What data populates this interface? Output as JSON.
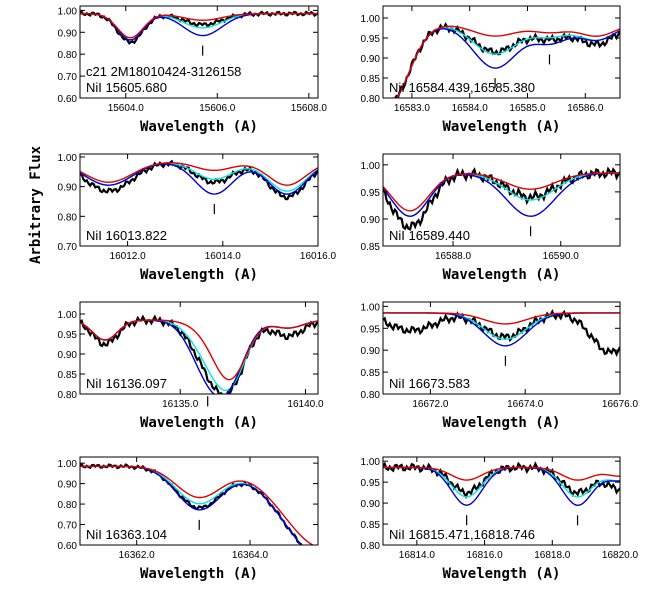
{
  "figure": {
    "ylabel": "Arbitrary Flux",
    "xlabel": "Wavelength (A)",
    "colors": {
      "black": "#000000",
      "cyan": "#00e5e5",
      "blue": "#0000cc",
      "red": "#e00000"
    }
  },
  "chart_data": [
    {
      "type": "line",
      "label_lines": [
        "c21 2M18010424-3126158",
        "NiI 15605.680"
      ],
      "xlim": [
        15603.0,
        15608.2
      ],
      "ylim": [
        0.6,
        1.02
      ],
      "xticks": [
        "15604.0",
        "15606.0",
        "15608.0"
      ],
      "xtick_values": [
        15604,
        15606,
        15608
      ],
      "yticks": [
        "0.60",
        "0.70",
        "0.80",
        "0.90",
        "1.00"
      ],
      "ytick_values": [
        0.6,
        0.7,
        0.8,
        0.9,
        1.0
      ],
      "markers": [
        15605.68
      ],
      "dips": [
        {
          "c": 15604.1,
          "w": 0.28,
          "d": [
            0.13,
            0.12,
            0.12,
            0.11
          ]
        },
        {
          "c": 15605.68,
          "w": 0.42,
          "d": [
            0.05,
            0.065,
            0.1,
            0.03
          ]
        }
      ],
      "bump": 0.0
    },
    {
      "type": "line",
      "label_lines": [
        "NiI 16584.439,16585.380"
      ],
      "xlim": [
        16582.5,
        16586.6
      ],
      "ylim": [
        0.8,
        1.03
      ],
      "xticks": [
        "16583.0",
        "16584.0",
        "16585.0",
        "16586.0"
      ],
      "xtick_values": [
        16583,
        16584,
        16585,
        16586
      ],
      "yticks": [
        "0.80",
        "0.85",
        "0.90",
        "0.95",
        "1.00"
      ],
      "ytick_values": [
        0.8,
        0.85,
        0.9,
        0.95,
        1.0
      ],
      "markers": [
        16584.439,
        16585.38
      ],
      "dips": [
        {
          "c": 16582.6,
          "w": 0.35,
          "d": [
            0.2,
            0.2,
            0.2,
            0.2
          ]
        },
        {
          "c": 16584.44,
          "w": 0.38,
          "d": [
            0.07,
            0.075,
            0.11,
            0.03
          ]
        },
        {
          "c": 16585.4,
          "w": 0.3,
          "d": [
            0.035,
            0.03,
            0.045,
            0.02
          ]
        },
        {
          "c": 16586.2,
          "w": 0.3,
          "d": [
            0.05,
            0.04,
            0.04,
            0.03
          ]
        }
      ],
      "bump": 0.0
    },
    {
      "type": "line",
      "label_lines": [
        "NiI 16013.822"
      ],
      "xlim": [
        16011.0,
        16016.0
      ],
      "ylim": [
        0.7,
        1.01
      ],
      "xticks": [
        "16012.0",
        "16014.0",
        "16016.0"
      ],
      "xtick_values": [
        16012,
        16014,
        16016
      ],
      "yticks": [
        "0.70",
        "0.80",
        "0.90",
        "1.00"
      ],
      "ytick_values": [
        0.7,
        0.8,
        0.9,
        1.0
      ],
      "markers": [
        16013.822
      ],
      "dips": [
        {
          "c": 16011.6,
          "w": 0.5,
          "d": [
            0.1,
            0.08,
            0.08,
            0.07
          ]
        },
        {
          "c": 16013.82,
          "w": 0.4,
          "d": [
            0.07,
            0.06,
            0.11,
            0.03
          ]
        },
        {
          "c": 16015.35,
          "w": 0.4,
          "d": [
            0.12,
            0.1,
            0.11,
            0.08
          ]
        }
      ],
      "bump": 0.0
    },
    {
      "type": "line",
      "label_lines": [
        "NiI 16589.440"
      ],
      "xlim": [
        16586.7,
        16591.1
      ],
      "ylim": [
        0.85,
        1.02
      ],
      "xticks": [
        "16588.0",
        "16590.0"
      ],
      "xtick_values": [
        16588,
        16590
      ],
      "yticks": [
        "0.85",
        "0.90",
        "0.95",
        "1.00"
      ],
      "ytick_values": [
        0.85,
        0.9,
        0.95,
        1.0
      ],
      "markers": [
        16589.44
      ],
      "dips": [
        {
          "c": 16587.2,
          "w": 0.35,
          "d": [
            0.1,
            0.08,
            0.08,
            0.07
          ]
        },
        {
          "c": 16589.44,
          "w": 0.45,
          "d": [
            0.045,
            0.05,
            0.08,
            0.03
          ]
        }
      ],
      "bump": 0.0
    },
    {
      "type": "line",
      "label_lines": [
        "NiI 16136.097"
      ],
      "xlim": [
        16131.0,
        16140.5
      ],
      "ylim": [
        0.8,
        1.03
      ],
      "xticks": [
        "16135.0",
        "16140.0"
      ],
      "xtick_values": [
        16135,
        16140
      ],
      "yticks": [
        "0.80",
        "0.85",
        "0.90",
        "0.95",
        "1.00"
      ],
      "ytick_values": [
        0.8,
        0.85,
        0.9,
        0.95,
        1.0
      ],
      "markers": [
        16136.097
      ],
      "dips": [
        {
          "c": 16132.0,
          "w": 0.5,
          "d": [
            0.06,
            0.05,
            0.05,
            0.05
          ]
        },
        {
          "c": 16136.1,
          "w": 0.7,
          "d": [
            0.09,
            0.07,
            0.12,
            0.02
          ]
        },
        {
          "c": 16137.0,
          "w": 0.65,
          "d": [
            0.14,
            0.14,
            0.12,
            0.14
          ]
        },
        {
          "c": 16139.3,
          "w": 0.6,
          "d": [
            0.04,
            0.02,
            0.02,
            0.02
          ]
        }
      ],
      "bump": 0.0
    },
    {
      "type": "line",
      "label_lines": [
        "NiI 16673.583"
      ],
      "xlim": [
        16671.0,
        16676.0
      ],
      "ylim": [
        0.8,
        1.01
      ],
      "xticks": [
        "16672.0",
        "16674.0",
        "16676.0"
      ],
      "xtick_values": [
        16672,
        16674,
        16676
      ],
      "yticks": [
        "0.80",
        "0.85",
        "0.90",
        "0.95",
        "1.00"
      ],
      "ytick_values": [
        0.8,
        0.85,
        0.9,
        0.95,
        1.0
      ],
      "markers": [
        16673.583
      ],
      "dips": [
        {
          "c": 16671.6,
          "w": 0.5,
          "d": [
            0.04,
            0.0,
            0.0,
            0.0
          ]
        },
        {
          "c": 16673.58,
          "w": 0.45,
          "d": [
            0.055,
            0.06,
            0.075,
            0.025
          ]
        },
        {
          "c": 16675.8,
          "w": 0.4,
          "d": [
            0.09,
            0.0,
            0.0,
            0.0
          ]
        }
      ],
      "bump": 0.0
    },
    {
      "type": "line",
      "label_lines": [
        "NiI 16363.104"
      ],
      "xlim": [
        16361.0,
        16365.2
      ],
      "ylim": [
        0.6,
        1.03
      ],
      "xticks": [
        "16362.0",
        "16364.0"
      ],
      "xtick_values": [
        16362,
        16364
      ],
      "yticks": [
        "0.60",
        "0.70",
        "0.80",
        "0.90",
        "1.00"
      ],
      "ytick_values": [
        0.6,
        0.7,
        0.8,
        0.9,
        1.0
      ],
      "markers": [
        16363.104
      ],
      "dips": [
        {
          "c": 16363.1,
          "w": 0.4,
          "d": [
            0.2,
            0.18,
            0.21,
            0.15
          ]
        },
        {
          "c": 16365.3,
          "w": 0.7,
          "d": [
            0.45,
            0.45,
            0.45,
            0.4
          ]
        }
      ],
      "bump": 0.0
    },
    {
      "type": "line",
      "label_lines": [
        "NiI 16815.471,16818.746"
      ],
      "xlim": [
        16813.0,
        16820.0
      ],
      "ylim": [
        0.8,
        1.01
      ],
      "xticks": [
        "16814.0",
        "16816.0",
        "16818.0",
        "16820.0"
      ],
      "xtick_values": [
        16814,
        16816,
        16818,
        16820
      ],
      "yticks": [
        "0.80",
        "0.85",
        "0.90",
        "0.95",
        "1.00"
      ],
      "ytick_values": [
        0.8,
        0.85,
        0.9,
        0.95,
        1.0
      ],
      "markers": [
        16815.471,
        16818.746
      ],
      "dips": [
        {
          "c": 16815.47,
          "w": 0.45,
          "d": [
            0.06,
            0.07,
            0.09,
            0.03
          ]
        },
        {
          "c": 16818.75,
          "w": 0.45,
          "d": [
            0.06,
            0.07,
            0.09,
            0.03
          ]
        },
        {
          "c": 16820.0,
          "w": 0.4,
          "d": [
            0.05,
            0.03,
            0.03,
            0.02
          ]
        }
      ],
      "bump": 0.0
    }
  ]
}
